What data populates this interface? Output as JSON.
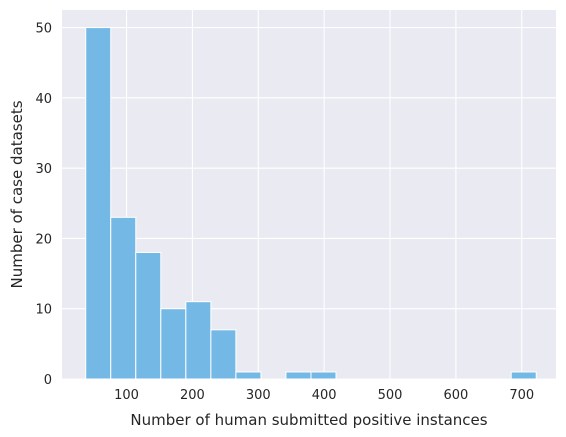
{
  "chart_data": {
    "type": "bar",
    "subtype": "histogram",
    "title": "",
    "xlabel": "Number of human submitted positive instances",
    "ylabel": "Number of case datasets",
    "xlim": [
      2,
      752
    ],
    "ylim": [
      0,
      52.5
    ],
    "x_ticks": [
      100,
      200,
      300,
      400,
      500,
      600,
      700
    ],
    "y_ticks": [
      0,
      10,
      20,
      30,
      40,
      50
    ],
    "grid": true,
    "colors": {
      "bar": "#74b9e6",
      "background": "#eaeaf2",
      "grid": "#ffffff"
    },
    "bins": [
      {
        "x0": 38,
        "x1": 76,
        "count": 50
      },
      {
        "x0": 76,
        "x1": 114,
        "count": 23
      },
      {
        "x0": 114,
        "x1": 152,
        "count": 18
      },
      {
        "x0": 152,
        "x1": 190,
        "count": 10
      },
      {
        "x0": 190,
        "x1": 228,
        "count": 11
      },
      {
        "x0": 228,
        "x1": 266,
        "count": 7
      },
      {
        "x0": 266,
        "x1": 304,
        "count": 1
      },
      {
        "x0": 342,
        "x1": 380,
        "count": 1
      },
      {
        "x0": 380,
        "x1": 418,
        "count": 1
      },
      {
        "x0": 684,
        "x1": 722,
        "count": 1
      }
    ]
  }
}
